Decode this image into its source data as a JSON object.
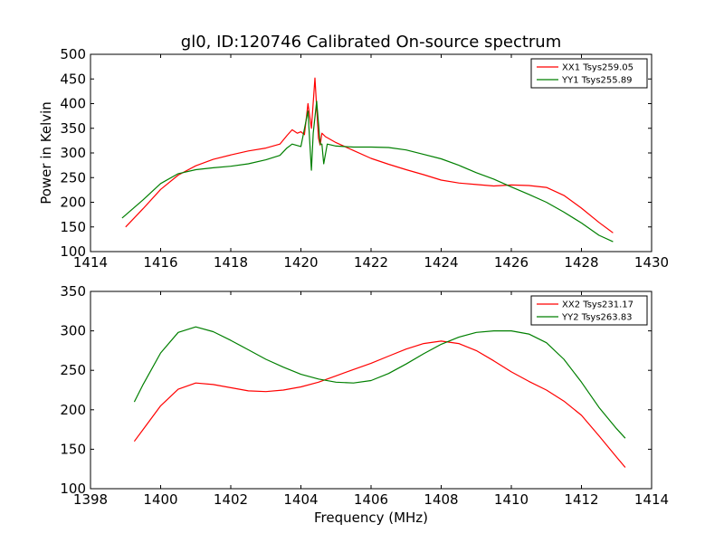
{
  "figure": {
    "title": "gl0, ID:120746 Calibrated On-source spectrum",
    "xlabel": "Frequency (MHz)",
    "ylabel": "Power in Kelvin"
  },
  "colors": {
    "red": "#ff0000",
    "green": "#007f00",
    "axes": "#000000",
    "background": "#ffffff"
  },
  "chart_data": [
    {
      "type": "line",
      "title": "gl0, ID:120746 Calibrated On-source spectrum",
      "xlabel": "",
      "ylabel": "Power in Kelvin",
      "xlim": [
        1414,
        1430
      ],
      "ylim": [
        100,
        500
      ],
      "xticks": [
        1414,
        1416,
        1418,
        1420,
        1422,
        1424,
        1426,
        1428,
        1430
      ],
      "yticks": [
        100,
        150,
        200,
        250,
        300,
        350,
        400,
        450,
        500
      ],
      "grid": false,
      "legend": "top-right",
      "series": [
        {
          "name": "XX1 Tsys259.05",
          "color": "#ff0000",
          "x": [
            1415.0,
            1415.5,
            1416.0,
            1416.5,
            1417.0,
            1417.5,
            1418.0,
            1418.5,
            1419.0,
            1419.4,
            1419.6,
            1419.75,
            1419.9,
            1420.0,
            1420.1,
            1420.2,
            1420.3,
            1420.4,
            1420.5,
            1420.55,
            1420.6,
            1420.7,
            1421.0,
            1421.5,
            1422.0,
            1422.5,
            1423.0,
            1423.5,
            1424.0,
            1424.5,
            1425.0,
            1425.5,
            1426.0,
            1426.5,
            1427.0,
            1427.5,
            1428.0,
            1428.5,
            1428.9
          ],
          "values": [
            150,
            187,
            226,
            255,
            274,
            287,
            296,
            304,
            310,
            318,
            335,
            347,
            340,
            343,
            337,
            400,
            350,
            452,
            330,
            316,
            340,
            333,
            321,
            305,
            289,
            277,
            266,
            256,
            245,
            239,
            236,
            233,
            235,
            234,
            230,
            214,
            188,
            159,
            138
          ]
        },
        {
          "name": "YY1 Tsys255.89",
          "color": "#007f00",
          "x": [
            1414.9,
            1415.5,
            1416.0,
            1416.5,
            1417.0,
            1417.5,
            1418.0,
            1418.5,
            1419.0,
            1419.4,
            1419.6,
            1419.75,
            1420.0,
            1420.2,
            1420.3,
            1420.35,
            1420.45,
            1420.55,
            1420.6,
            1420.65,
            1420.75,
            1421.0,
            1421.5,
            1422.0,
            1422.5,
            1423.0,
            1423.5,
            1424.0,
            1424.5,
            1425.0,
            1425.5,
            1426.0,
            1426.5,
            1427.0,
            1427.5,
            1428.0,
            1428.5,
            1428.9
          ],
          "values": [
            168,
            205,
            238,
            258,
            266,
            270,
            273,
            278,
            286,
            295,
            310,
            318,
            313,
            385,
            265,
            340,
            405,
            318,
            318,
            278,
            318,
            314,
            312,
            312,
            311,
            306,
            297,
            288,
            275,
            260,
            247,
            231,
            216,
            200,
            180,
            158,
            133,
            120
          ]
        }
      ]
    },
    {
      "type": "line",
      "title": "",
      "xlabel": "Frequency (MHz)",
      "ylabel": "",
      "xlim": [
        1398,
        1414
      ],
      "ylim": [
        100,
        350
      ],
      "xticks": [
        1398,
        1400,
        1402,
        1404,
        1406,
        1408,
        1410,
        1412,
        1414
      ],
      "yticks": [
        100,
        150,
        200,
        250,
        300,
        350
      ],
      "grid": false,
      "legend": "top-right",
      "series": [
        {
          "name": "XX2 Tsys231.17",
          "color": "#ff0000",
          "x": [
            1399.25,
            1399.5,
            1400.0,
            1400.5,
            1401.0,
            1401.5,
            1402.0,
            1402.5,
            1403.0,
            1403.5,
            1404.0,
            1404.5,
            1405.0,
            1405.5,
            1406.0,
            1406.5,
            1407.0,
            1407.5,
            1408.0,
            1408.5,
            1409.0,
            1409.5,
            1410.0,
            1410.5,
            1411.0,
            1411.5,
            1412.0,
            1412.5,
            1413.0,
            1413.25
          ],
          "values": [
            160,
            175,
            205,
            226,
            234,
            232,
            228,
            224,
            223,
            225,
            229,
            235,
            243,
            251,
            259,
            268,
            277,
            284,
            287,
            284,
            275,
            262,
            248,
            236,
            225,
            211,
            193,
            167,
            140,
            127
          ]
        },
        {
          "name": "YY2 Tsys263.83",
          "color": "#007f00",
          "x": [
            1399.25,
            1399.5,
            1400.0,
            1400.5,
            1401.0,
            1401.5,
            1402.0,
            1402.5,
            1403.0,
            1403.5,
            1404.0,
            1404.5,
            1405.0,
            1405.5,
            1406.0,
            1406.5,
            1407.0,
            1407.5,
            1408.0,
            1408.5,
            1409.0,
            1409.5,
            1410.0,
            1410.5,
            1411.0,
            1411.5,
            1412.0,
            1412.5,
            1413.0,
            1413.25
          ],
          "values": [
            210,
            232,
            272,
            298,
            305,
            299,
            288,
            276,
            264,
            254,
            245,
            239,
            235,
            234,
            237,
            246,
            258,
            271,
            283,
            292,
            298,
            300,
            300,
            296,
            285,
            264,
            235,
            203,
            176,
            164
          ]
        }
      ]
    }
  ]
}
